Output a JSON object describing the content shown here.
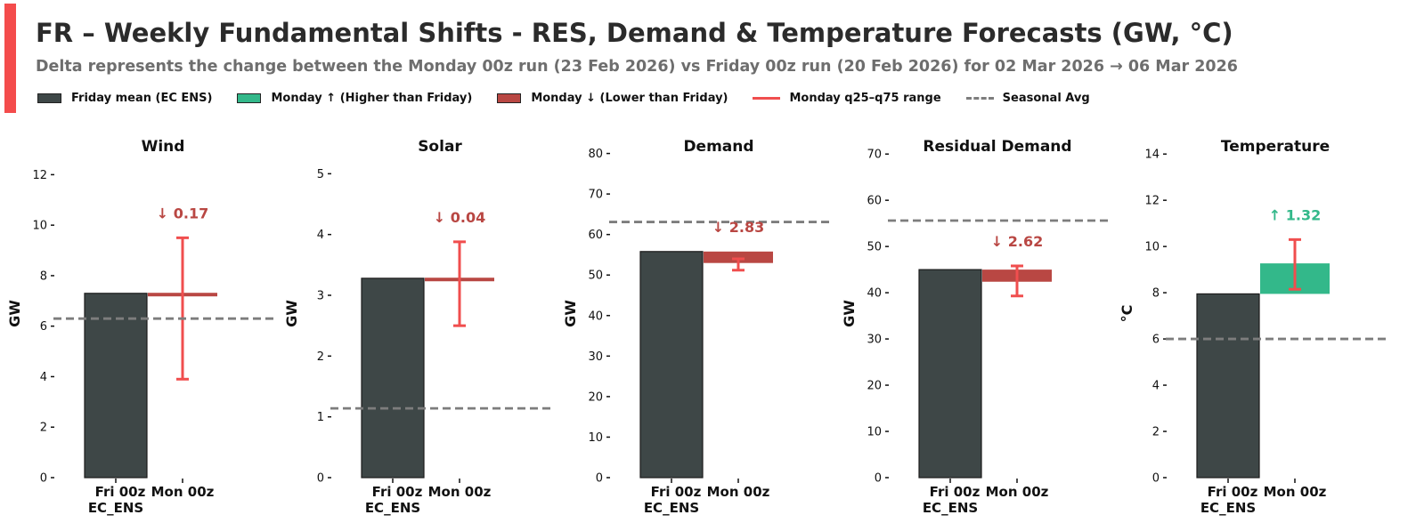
{
  "header": {
    "title": "FR – Weekly Fundamental Shifts - RES, Demand & Temperature Forecasts (GW, °C)",
    "subtitle": "Delta represents the change between the Monday 00z run (23 Feb 2026) vs Friday 00z run (20 Feb 2026) for 02 Mar 2026 → 06 Mar 2026"
  },
  "colors": {
    "accent": "#f44c4c",
    "friday_bar": "#3e4747",
    "up": "#33b88a",
    "down": "#b94743",
    "range": "#f04e4e",
    "seasonal": "#7d7d7d"
  },
  "legend": {
    "friday": "Friday mean (EC ENS)",
    "up": "Monday ↑ (Higher than Friday)",
    "down": "Monday ↓ (Lower than Friday)",
    "range": "Monday q25–q75 range",
    "seasonal": "Seasonal Avg"
  },
  "chart_data": [
    {
      "type": "bar",
      "title": "Wind",
      "ylabel": "GW",
      "categories": [
        "Fri 00z\nEC_ENS",
        "Mon 00z"
      ],
      "ylim": [
        0,
        13
      ],
      "yticks": [
        0,
        2,
        4,
        6,
        8,
        10,
        12
      ],
      "friday_mean": 7.3,
      "monday_mean": 7.2,
      "monday_q25": 3.9,
      "monday_q75": 9.5,
      "delta": 0.17,
      "direction": "down",
      "delta_label": "↓ 0.17",
      "seasonal_avg": 6.3
    },
    {
      "type": "bar",
      "title": "Solar",
      "ylabel": "GW",
      "categories": [
        "Fri 00z\nEC_ENS",
        "Mon 00z"
      ],
      "ylim": [
        0,
        5.4
      ],
      "yticks": [
        0,
        1,
        2,
        3,
        4,
        5
      ],
      "friday_mean": 3.28,
      "monday_mean": 3.24,
      "monday_q25": 2.5,
      "monday_q75": 3.88,
      "delta": 0.04,
      "direction": "down",
      "delta_label": "↓ 0.04",
      "seasonal_avg": 1.14
    },
    {
      "type": "bar",
      "title": "Demand",
      "ylabel": "GW",
      "categories": [
        "Fri 00z\nEC_ENS",
        "Mon 00z"
      ],
      "ylim": [
        0,
        81
      ],
      "yticks": [
        0,
        10,
        20,
        30,
        40,
        50,
        60,
        70,
        80
      ],
      "friday_mean": 55.8,
      "monday_mean": 52.97,
      "monday_q25": 51.2,
      "monday_q75": 54.0,
      "delta": 2.83,
      "direction": "down",
      "delta_label": "↓ 2.83",
      "seasonal_avg": 63.1
    },
    {
      "type": "bar",
      "title": "Residual Demand",
      "ylabel": "GW",
      "categories": [
        "Fri 00z\nEC_ENS",
        "Mon 00z"
      ],
      "ylim": [
        0,
        71
      ],
      "yticks": [
        0,
        10,
        20,
        30,
        40,
        50,
        60,
        70
      ],
      "friday_mean": 45.0,
      "monday_mean": 42.38,
      "monday_q25": 39.3,
      "monday_q75": 45.8,
      "delta": 2.62,
      "direction": "down",
      "delta_label": "↓ 2.62",
      "seasonal_avg": 55.6
    },
    {
      "type": "bar",
      "title": "Temperature",
      "ylabel": "°C",
      "categories": [
        "Fri 00z\nEC_ENS",
        "Mon 00z"
      ],
      "ylim": [
        0,
        14.2
      ],
      "yticks": [
        0,
        2,
        4,
        6,
        8,
        10,
        12,
        14
      ],
      "friday_mean": 7.95,
      "monday_mean": 9.27,
      "monday_q25": 8.15,
      "monday_q75": 10.3,
      "delta": 1.32,
      "direction": "up",
      "delta_label": "↑ 1.32",
      "seasonal_avg": 6.0
    }
  ]
}
